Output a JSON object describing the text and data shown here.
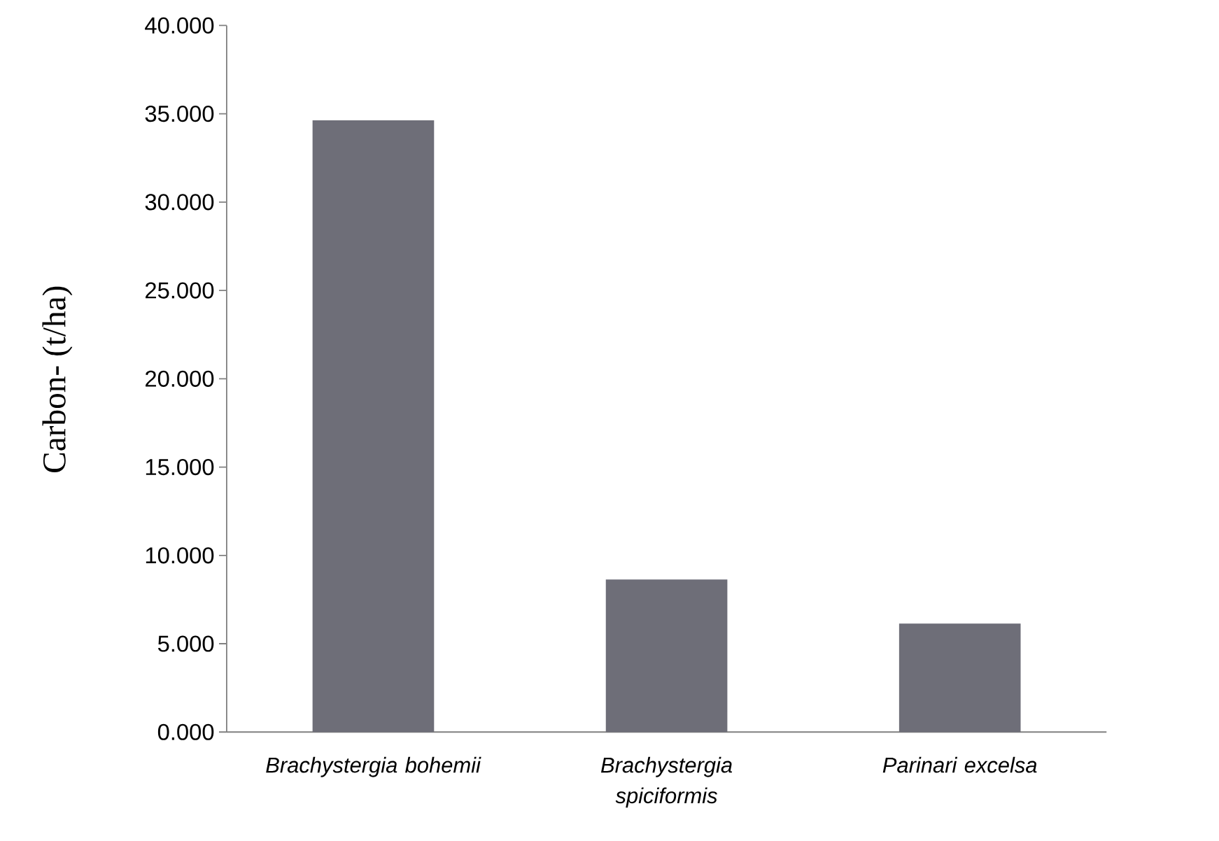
{
  "chart_data": {
    "type": "bar",
    "categories": [
      "*Brachystergia bohemii*",
      "*Brachystergia spiciformis*",
      "*Parinari excelsa*"
    ],
    "values": [
      34.6,
      8.6,
      6.1
    ],
    "color": "#6e6e78",
    "ylabel": "Carbon- (t/ha)",
    "ylim": [
      0,
      40
    ],
    "yticks": [
      {
        "value": 0,
        "label": "0.000"
      },
      {
        "value": 5,
        "label": "5.000"
      },
      {
        "value": 10,
        "label": "10.000"
      },
      {
        "value": 15,
        "label": "15.000"
      },
      {
        "value": 20,
        "label": "20.000"
      },
      {
        "value": 25,
        "label": "25.000"
      },
      {
        "value": 30,
        "label": "30.000"
      },
      {
        "value": 35,
        "label": "35.000"
      },
      {
        "value": 40,
        "label": "40.000"
      }
    ]
  }
}
